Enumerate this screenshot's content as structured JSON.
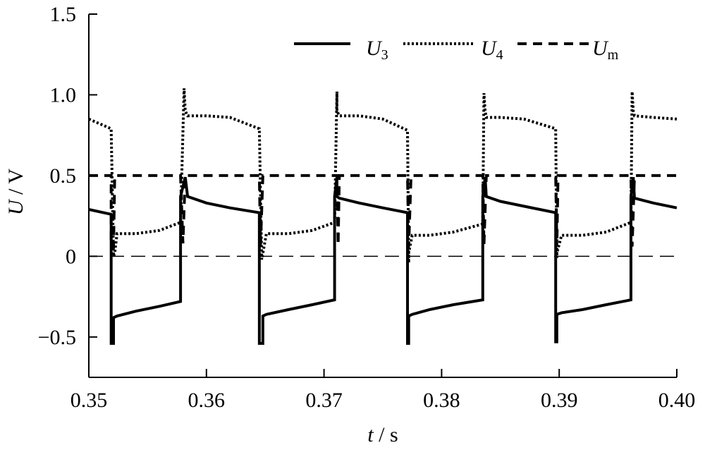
{
  "chart_data": {
    "type": "line",
    "xlabel_var": "t",
    "xlabel_unit": " / s",
    "ylabel_var": "U",
    "ylabel_unit": " / V",
    "xlim": [
      0.35,
      0.4
    ],
    "ylim": [
      -0.75,
      1.5
    ],
    "xticks": [
      0.35,
      0.36,
      0.37,
      0.38,
      0.39,
      0.4
    ],
    "xtick_labels": [
      "0.35",
      "0.36",
      "0.37",
      "0.38",
      "0.39",
      "0.40"
    ],
    "yticks": [
      -0.5,
      0,
      0.5,
      1.0,
      1.5
    ],
    "ytick_labels": [
      "−0.5",
      "0",
      "0.5",
      "1.0",
      "1.5"
    ],
    "zero_line": true,
    "grid": false,
    "legend_position": "top-right",
    "series": [
      {
        "name": "U3",
        "name_base": "U",
        "name_sub": "3",
        "style": "solid",
        "x": [
          0.35,
          0.3519,
          0.3519,
          0.3521,
          0.3521,
          0.3524,
          0.354,
          0.356,
          0.3578,
          0.3578,
          0.3582,
          0.3584,
          0.36,
          0.362,
          0.3645,
          0.3645,
          0.3647,
          0.3648,
          0.3648,
          0.3651,
          0.367,
          0.369,
          0.3709,
          0.3709,
          0.3711,
          0.3711,
          0.3713,
          0.373,
          0.375,
          0.3771,
          0.3771,
          0.3772,
          0.3772,
          0.3775,
          0.379,
          0.381,
          0.3835,
          0.3835,
          0.3837,
          0.3838,
          0.385,
          0.387,
          0.3897,
          0.3897,
          0.3898,
          0.3898,
          0.3902,
          0.392,
          0.394,
          0.3961,
          0.3961,
          0.3963,
          0.3964,
          0.398,
          0.4
        ],
        "y": [
          0.29,
          0.26,
          -0.54,
          -0.54,
          -0.38,
          -0.37,
          -0.34,
          -0.31,
          -0.28,
          0.37,
          0.49,
          0.37,
          0.33,
          0.3,
          0.27,
          -0.54,
          -0.54,
          -0.54,
          -0.37,
          -0.36,
          -0.33,
          -0.3,
          -0.27,
          0.37,
          0.49,
          0.37,
          0.36,
          0.33,
          0.3,
          0.27,
          -0.54,
          -0.54,
          -0.37,
          -0.36,
          -0.33,
          -0.3,
          -0.27,
          0.37,
          0.49,
          0.37,
          0.34,
          0.31,
          0.27,
          -0.53,
          -0.53,
          -0.36,
          -0.35,
          -0.33,
          -0.3,
          -0.27,
          0.37,
          0.49,
          0.36,
          0.33,
          0.3
        ]
      },
      {
        "name": "U4",
        "name_base": "U",
        "name_sub": "4",
        "style": "dotted",
        "x": [
          0.35,
          0.3519,
          0.3521,
          0.3522,
          0.3524,
          0.354,
          0.356,
          0.3578,
          0.3581,
          0.3582,
          0.3584,
          0.36,
          0.362,
          0.3645,
          0.3647,
          0.3648,
          0.3651,
          0.367,
          0.369,
          0.3709,
          0.3711,
          0.3711,
          0.3713,
          0.373,
          0.375,
          0.3771,
          0.3772,
          0.3772,
          0.3775,
          0.379,
          0.381,
          0.3835,
          0.3836,
          0.3837,
          0.3838,
          0.385,
          0.387,
          0.3897,
          0.3898,
          0.3898,
          0.3902,
          0.392,
          0.394,
          0.3961,
          0.3962,
          0.3963,
          0.3964,
          0.398,
          0.4
        ],
        "y": [
          0.85,
          0.79,
          0.0,
          0.02,
          0.14,
          0.14,
          0.16,
          0.21,
          1.04,
          0.9,
          0.87,
          0.87,
          0.86,
          0.79,
          -0.02,
          0.02,
          0.14,
          0.14,
          0.16,
          0.21,
          1.02,
          0.9,
          0.87,
          0.87,
          0.85,
          0.78,
          -0.04,
          0.02,
          0.13,
          0.13,
          0.15,
          0.2,
          1.01,
          0.9,
          0.86,
          0.86,
          0.85,
          0.79,
          -0.01,
          0.02,
          0.13,
          0.13,
          0.15,
          0.21,
          1.02,
          0.9,
          0.87,
          0.86,
          0.85
        ]
      },
      {
        "name": "Um",
        "name_base": "U",
        "name_sub": "m",
        "style": "dashed",
        "x": [
          0.35,
          0.3519,
          0.3519,
          0.3521,
          0.3522,
          0.3578,
          0.358,
          0.3582,
          0.3645,
          0.3646,
          0.3648,
          0.3711,
          0.3712,
          0.3713,
          0.3771,
          0.3772,
          0.3774,
          0.3835,
          0.3836,
          0.3838,
          0.3897,
          0.3898,
          0.3899,
          0.3961,
          0.3962,
          0.3964,
          0.4
        ],
        "y": [
          0.5,
          0.5,
          0.08,
          0.05,
          0.5,
          0.5,
          0.08,
          0.5,
          0.5,
          0.07,
          0.5,
          0.5,
          0.07,
          0.5,
          0.5,
          0.06,
          0.5,
          0.5,
          0.07,
          0.5,
          0.5,
          0.06,
          0.5,
          0.5,
          0.06,
          0.5,
          0.5
        ]
      }
    ]
  }
}
